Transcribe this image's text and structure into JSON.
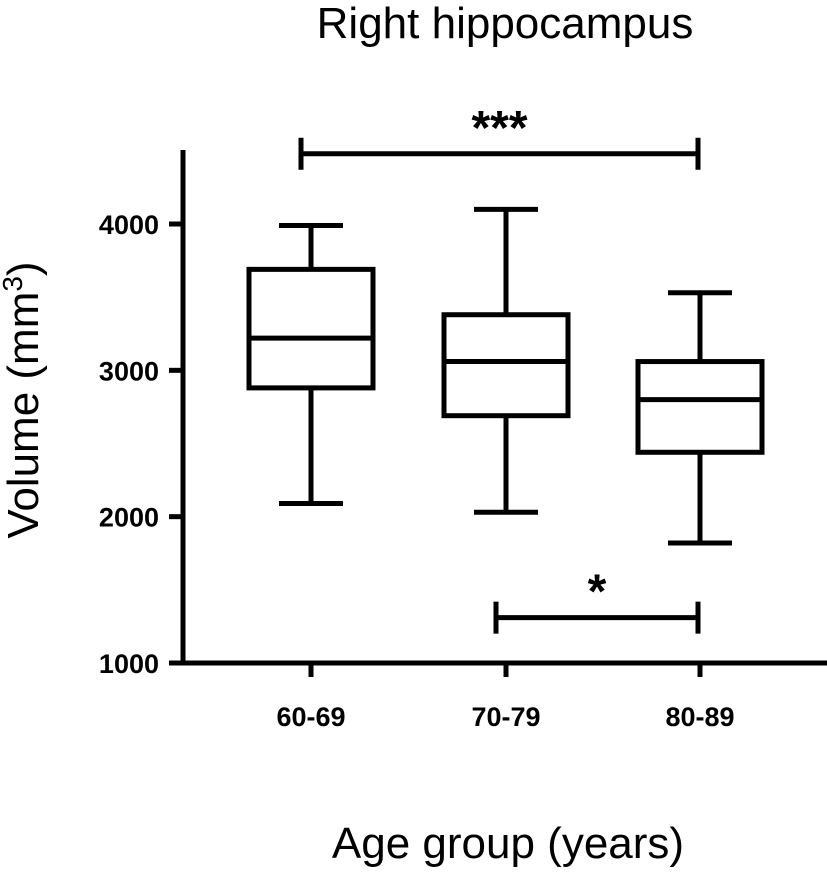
{
  "chart_data": {
    "type": "box",
    "title": "Right hippocampus",
    "xlabel": "Age group (years)",
    "ylabel_main": "Volume (mm",
    "ylabel_sup": "3",
    "ylabel_close": ")",
    "ylim": [
      1000,
      4500
    ],
    "yticks": [
      1000,
      2000,
      3000,
      4000
    ],
    "categories": [
      "60-69",
      "70-79",
      "80-89"
    ],
    "boxes": [
      {
        "min": 2090,
        "q1": 2880,
        "median": 3220,
        "q3": 3690,
        "max": 3990
      },
      {
        "min": 2030,
        "q1": 2690,
        "median": 3060,
        "q3": 3380,
        "max": 4100
      },
      {
        "min": 1820,
        "q1": 2440,
        "median": 2800,
        "q3": 3060,
        "max": 3530
      }
    ],
    "significance": [
      {
        "from": 0,
        "to": 2,
        "label": "***",
        "y": 4480
      },
      {
        "from": 1,
        "to": 2,
        "label": "*",
        "y": 1310
      }
    ]
  }
}
